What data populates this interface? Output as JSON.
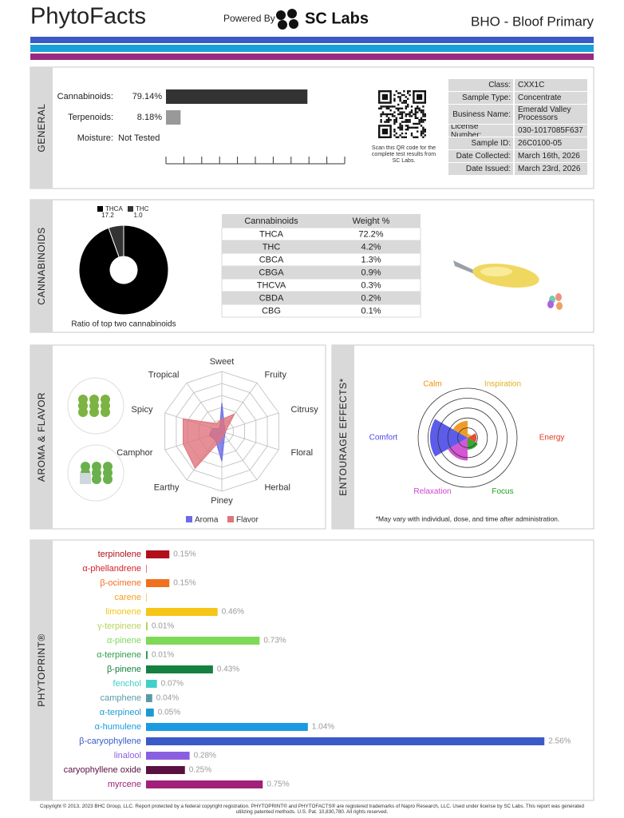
{
  "header": {
    "brand": "PhytoFacts",
    "powered_by": "Powered By",
    "lab": "SC Labs",
    "product": "BHO - Bloof Primary"
  },
  "general": {
    "label": "GENERAL",
    "items": [
      {
        "name": "Cannabinoids:",
        "value": 79.14,
        "value_label": "79.14%",
        "color": "#333333"
      },
      {
        "name": "Terpenoids:",
        "value": 8.18,
        "value_label": "8.18%",
        "color": "#999999"
      }
    ],
    "moisture": {
      "name": "Moisture:",
      "value": "Not Tested"
    },
    "xlim": [
      0,
      100
    ],
    "xticks": [
      0,
      10,
      20,
      30,
      40,
      50,
      60,
      70,
      80,
      90,
      100
    ],
    "qr_caption": "Scan this QR code for the complete test results from SC Labs.",
    "info": [
      [
        "Class:",
        "CXX1C"
      ],
      [
        "Sample Type:",
        "Concentrate"
      ],
      [
        "Business Name:",
        "Emerald Valley Processors"
      ],
      [
        "License Number:",
        "030-1017085F637"
      ],
      [
        "Sample ID:",
        "26C0100-05"
      ],
      [
        "Date Collected:",
        "March 16th, 2026"
      ],
      [
        "Date Issued:",
        "March 23rd, 2026"
      ]
    ]
  },
  "cannabinoids": {
    "label": "CANNABINOIDS",
    "table": {
      "header": [
        "Cannabinoids",
        "Weight %"
      ],
      "rows": [
        [
          "THCA",
          "72.2%"
        ],
        [
          "THC",
          "4.2%"
        ],
        [
          "CBCA",
          "1.3%"
        ],
        [
          "CBGA",
          "0.9%"
        ],
        [
          "THCVA",
          "0.3%"
        ],
        [
          "CBDA",
          "0.2%"
        ],
        [
          "CBG",
          "0.1%"
        ]
      ]
    }
  },
  "chart_data": [
    {
      "type": "pie",
      "title": "Ratio of top two cannabinoids",
      "categories": [
        "THCA",
        "THC"
      ],
      "values": [
        17.2,
        1.0
      ],
      "value_labels": [
        "17.2",
        "1.0"
      ],
      "colors": [
        "#000000",
        "#333333"
      ]
    },
    {
      "type": "radar",
      "title": "AROMA & FLAVOR",
      "categories": [
        "Sweet",
        "Fruity",
        "Citrusy",
        "Floral",
        "Herbal",
        "Piney",
        "Earthy",
        "Camphor",
        "Spicy",
        "Tropical"
      ],
      "rlim": [
        0,
        5
      ],
      "rticks": [
        1,
        2,
        3,
        4,
        5
      ],
      "series": [
        {
          "name": "Aroma",
          "color": "#6b6be6",
          "values": [
            2.4,
            0.4,
            0.3,
            0.3,
            0.4,
            2.5,
            0.9,
            1.1,
            0.8,
            0.3
          ]
        },
        {
          "name": "Flavor",
          "color": "#e0737c",
          "values": [
            1.0,
            1.8,
            0.4,
            0.3,
            0.3,
            0.6,
            3.8,
            3.4,
            3.4,
            0.8
          ]
        }
      ]
    },
    {
      "type": "polar-area",
      "title": "ENTOURAGE EFFECTS*",
      "categories": [
        "Energy",
        "Focus",
        "Relaxation",
        "Comfort",
        "Calm",
        "Inspiration"
      ],
      "values": [
        0.9,
        1.2,
        2.3,
        3.8,
        1.7,
        0.4
      ],
      "colors": [
        "#e03a20",
        "#1f9e1f",
        "#cf45cf",
        "#4a4ae8",
        "#f0900f",
        "#e0b020"
      ],
      "rlim": [
        0,
        5
      ],
      "rticks": [
        1,
        2,
        3,
        4,
        5
      ],
      "note": "*May vary with individual, dose, and time after administration."
    },
    {
      "type": "bar",
      "orientation": "horizontal",
      "title": "PHYTOPRINT®",
      "categories": [
        "terpinolene",
        "α-phellandrene",
        "β-ocimene",
        "carene",
        "limonene",
        "γ-terpinene",
        "α-pinene",
        "α-terpinene",
        "β-pinene",
        "fenchol",
        "camphene",
        "α-terpineol",
        "α-humulene",
        "β-caryophyllene",
        "linalool",
        "caryophyllene oxide",
        "myrcene"
      ],
      "values": [
        0.15,
        0.003,
        0.15,
        0.003,
        0.46,
        0.01,
        0.73,
        0.01,
        0.43,
        0.07,
        0.04,
        0.05,
        1.04,
        2.56,
        0.28,
        0.25,
        0.75
      ],
      "value_labels": [
        "0.15%",
        null,
        "0.15%",
        null,
        "0.46%",
        "0.01%",
        "0.73%",
        "0.01%",
        "0.43%",
        "0.07%",
        "0.04%",
        "0.05%",
        "1.04%",
        "2.56%",
        "0.28%",
        "0.25%",
        "0.75%"
      ],
      "colors": [
        "#b0101a",
        "#d4202a",
        "#f07020",
        "#f3a020",
        "#f5c518",
        "#b8d45a",
        "#7ed957",
        "#2e9e4a",
        "#168040",
        "#3fd0c8",
        "#5a9aa8",
        "#1a9ad0",
        "#1a9ae0",
        "#3a5ac8",
        "#8a60e0",
        "#5a1040",
        "#a0207a"
      ],
      "xlim": [
        0,
        2.6
      ]
    }
  ],
  "footer": "Copyright © 2013, 2023 BHC Group, LLC. Report protected by a federal copyright registration. PHYTOPRINT® and PHYTOFACTS® are registered trademarks of Napro Research, LLC. Used under license by SC Labs. This report was generated utilizing patented methods. U.S. Pat. 10,830,780. All rights reserved."
}
